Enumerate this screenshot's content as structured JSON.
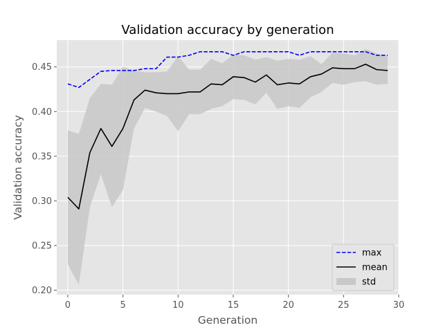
{
  "chart_data": {
    "type": "line",
    "title": "Validation accuracy by generation",
    "xlabel": "Generation",
    "ylabel": "Validation accuracy",
    "xlim": [
      -1,
      30
    ],
    "ylim": [
      0.195,
      0.48
    ],
    "xticks": [
      0,
      5,
      10,
      15,
      20,
      25,
      30
    ],
    "yticks": [
      0.2,
      0.25,
      0.3,
      0.35,
      0.4,
      0.45
    ],
    "grid": true,
    "legend_position": "lower-right",
    "x": [
      0,
      1,
      2,
      3,
      4,
      5,
      6,
      7,
      8,
      9,
      10,
      11,
      12,
      13,
      14,
      15,
      16,
      17,
      18,
      19,
      20,
      21,
      22,
      23,
      24,
      25,
      26,
      27,
      28,
      29
    ],
    "series": [
      {
        "name": "max",
        "style": "dashed",
        "color": "#0000ff",
        "values": [
          0.431,
          0.427,
          0.436,
          0.445,
          0.446,
          0.446,
          0.446,
          0.448,
          0.448,
          0.461,
          0.461,
          0.463,
          0.467,
          0.467,
          0.467,
          0.463,
          0.467,
          0.467,
          0.467,
          0.467,
          0.467,
          0.463,
          0.467,
          0.467,
          0.467,
          0.467,
          0.467,
          0.467,
          0.463,
          0.463
        ]
      },
      {
        "name": "mean",
        "style": "solid",
        "color": "#000000",
        "values": [
          0.304,
          0.291,
          0.354,
          0.381,
          0.361,
          0.381,
          0.413,
          0.424,
          0.421,
          0.42,
          0.42,
          0.422,
          0.422,
          0.431,
          0.43,
          0.439,
          0.438,
          0.433,
          0.441,
          0.43,
          0.432,
          0.431,
          0.439,
          0.442,
          0.449,
          0.448,
          0.448,
          0.453,
          0.447,
          0.446
        ]
      }
    ],
    "band": {
      "name": "std",
      "color": "#c8c8c8",
      "upper": [
        0.379,
        0.375,
        0.415,
        0.431,
        0.43,
        0.45,
        0.446,
        0.444,
        0.444,
        0.445,
        0.462,
        0.447,
        0.447,
        0.459,
        0.454,
        0.464,
        0.463,
        0.458,
        0.461,
        0.457,
        0.459,
        0.458,
        0.462,
        0.453,
        0.466,
        0.465,
        0.463,
        0.47,
        0.465,
        0.462
      ],
      "lower": [
        0.229,
        0.206,
        0.293,
        0.33,
        0.293,
        0.312,
        0.381,
        0.404,
        0.4,
        0.395,
        0.378,
        0.397,
        0.397,
        0.403,
        0.406,
        0.414,
        0.413,
        0.408,
        0.421,
        0.403,
        0.406,
        0.404,
        0.416,
        0.422,
        0.432,
        0.43,
        0.433,
        0.434,
        0.43,
        0.431
      ]
    },
    "legend": [
      "max",
      "mean",
      "std"
    ]
  }
}
